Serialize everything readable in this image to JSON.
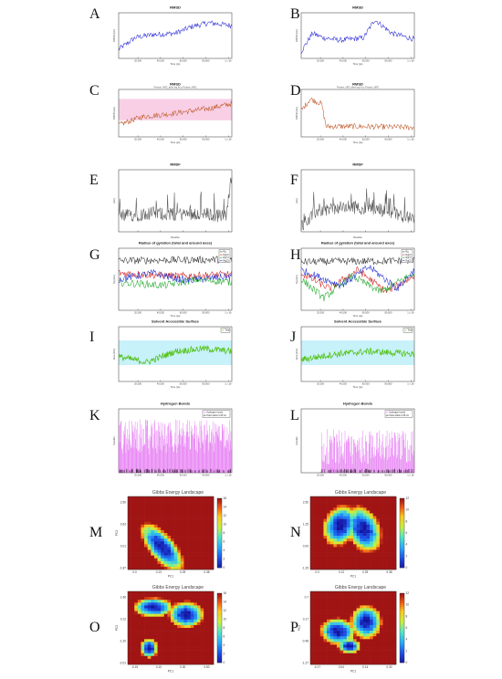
{
  "figure": {
    "panel_letters": [
      "A",
      "B",
      "C",
      "D",
      "E",
      "F",
      "G",
      "H",
      "I",
      "J",
      "K",
      "L",
      "M",
      "N",
      "O",
      "P"
    ]
  },
  "colors": {
    "rmsd_a": "#2b2bd6",
    "rmsd_c": "#c0592a",
    "rmsd_c_band": "#f2a8cf",
    "rmsf": "#555555",
    "sasa": "#55c21b",
    "sasa_band": "#9be7f5",
    "hbond": "#e05cf0",
    "rg_total": "#333333",
    "rg_x": "#d02020",
    "rg_y": "#1fa82a",
    "rg_z": "#2030d0"
  },
  "chart_data": [
    {
      "panel": "A",
      "type": "line",
      "title": "RMSD",
      "subtitle": "",
      "xlabel": "Time (ps)",
      "ylabel": "RMSD (nm)",
      "xticks": [
        "20,000",
        "40,000",
        "60,000",
        "80,000",
        "1 x 10⁵"
      ],
      "series": [
        {
          "color": "#2b2bd6",
          "points": 160,
          "trend": [
            [
              0,
              0.2
            ],
            [
              0.15,
              0.46
            ],
            [
              0.3,
              0.52
            ],
            [
              0.5,
              0.55
            ],
            [
              0.65,
              0.7
            ],
            [
              0.8,
              0.78
            ],
            [
              1,
              0.72
            ]
          ]
        }
      ]
    },
    {
      "panel": "B",
      "type": "line",
      "title": "RMSD",
      "subtitle": "",
      "xlabel": "Time (ps)",
      "ylabel": "RMSD (nm)",
      "xticks": [
        "20,000",
        "40,000",
        "60,000",
        "80,000",
        "1 x 10⁵"
      ],
      "series": [
        {
          "color": "#2b2bd6",
          "points": 160,
          "trend": [
            [
              0,
              0.15
            ],
            [
              0.1,
              0.55
            ],
            [
              0.2,
              0.45
            ],
            [
              0.35,
              0.4
            ],
            [
              0.55,
              0.45
            ],
            [
              0.65,
              0.85
            ],
            [
              0.8,
              0.55
            ],
            [
              1,
              0.42
            ]
          ]
        }
      ]
    },
    {
      "panel": "C",
      "type": "line",
      "title": "RMSD",
      "subtitle": "Protein, NR2_after lsq fit to Protein_NR2",
      "xlabel": "Time (ps)",
      "ylabel": "RMSD (nm)",
      "xticks": [
        "20,000",
        "40,000",
        "60,000",
        "80,000",
        "1 x 10⁵"
      ],
      "series": [
        {
          "color": "#c0592a",
          "points": 160,
          "trend": [
            [
              0,
              0.25
            ],
            [
              0.2,
              0.42
            ],
            [
              0.5,
              0.5
            ],
            [
              0.8,
              0.6
            ],
            [
              1,
              0.7
            ]
          ]
        }
      ]
    },
    {
      "panel": "D",
      "type": "line",
      "title": "RMSD",
      "subtitle": "Protein_NR2 after lsq fit to Protein_NR2",
      "xlabel": "Time (ps)",
      "ylabel": "RMSD (nm)",
      "xticks": [
        "20,000",
        "40,000",
        "60,000",
        "80,000",
        "1 x 10⁵"
      ],
      "series": [
        {
          "color": "#c0592a",
          "points": 160,
          "trend": [
            [
              0,
              0.55
            ],
            [
              0.08,
              0.8
            ],
            [
              0.18,
              0.7
            ],
            [
              0.22,
              0.22
            ],
            [
              0.5,
              0.22
            ],
            [
              1,
              0.2
            ]
          ]
        }
      ]
    },
    {
      "panel": "E",
      "type": "line",
      "title": "RMSF",
      "subtitle": "",
      "xlabel": "Residue",
      "ylabel": "(nm)",
      "xticks": [
        "",
        "",
        "",
        "",
        ""
      ],
      "series": [
        {
          "color": "#555555",
          "points": 200,
          "trend": [
            [
              0,
              0.25
            ],
            [
              0.3,
              0.3
            ],
            [
              0.5,
              0.28
            ],
            [
              0.7,
              0.3
            ],
            [
              0.95,
              0.25
            ],
            [
              1,
              0.95
            ]
          ]
        }
      ]
    },
    {
      "panel": "F",
      "type": "line",
      "title": "RMSF",
      "subtitle": "",
      "xlabel": "Residue",
      "ylabel": "(nm)",
      "xticks": [
        "",
        "",
        "",
        "",
        ""
      ],
      "series": [
        {
          "color": "#555555",
          "points": 200,
          "trend": [
            [
              0,
              0.1
            ],
            [
              0.15,
              0.35
            ],
            [
              0.45,
              0.4
            ],
            [
              0.75,
              0.35
            ],
            [
              1,
              0.2
            ]
          ]
        }
      ]
    },
    {
      "panel": "G",
      "type": "line",
      "title": "Radius of gyration (total and around axes)",
      "subtitle": "",
      "xlabel": "Time (ps)",
      "ylabel": "Rg (nm)",
      "xticks": [
        "20,000",
        "40,000",
        "60,000",
        "80,000",
        "1 x 10⁵"
      ],
      "legend": [
        "Rg",
        "Rg(X)",
        "Rg(Y)",
        "Rg(Z)"
      ],
      "series": [
        {
          "name": "Rg",
          "color": "#333333",
          "points": 140,
          "trend": [
            [
              0,
              0.8
            ],
            [
              1,
              0.82
            ]
          ]
        },
        {
          "name": "Rg(X)",
          "color": "#d02020",
          "points": 140,
          "trend": [
            [
              0,
              0.6
            ],
            [
              0.5,
              0.55
            ],
            [
              1,
              0.58
            ]
          ]
        },
        {
          "name": "Rg(Y)",
          "color": "#1fa82a",
          "points": 140,
          "trend": [
            [
              0,
              0.45
            ],
            [
              0.4,
              0.4
            ],
            [
              0.7,
              0.5
            ],
            [
              1,
              0.45
            ]
          ]
        },
        {
          "name": "Rg(Z)",
          "color": "#2030d0",
          "points": 140,
          "trend": [
            [
              0,
              0.5
            ],
            [
              0.3,
              0.6
            ],
            [
              0.6,
              0.48
            ],
            [
              1,
              0.55
            ]
          ]
        }
      ]
    },
    {
      "panel": "H",
      "type": "line",
      "title": "Radius of gyration (total and around axes)",
      "subtitle": "",
      "xlabel": "Time (ps)",
      "ylabel": "Rg (nm)",
      "xticks": [
        "20,000",
        "40,000",
        "60,000",
        "80,000",
        "1 x 10⁵"
      ],
      "legend": [
        "Rg",
        "Rg(X)",
        "Rg(Y)",
        "Rg(Z)"
      ],
      "series": [
        {
          "name": "Rg",
          "color": "#333333",
          "points": 140,
          "trend": [
            [
              0,
              0.78
            ],
            [
              1,
              0.8
            ]
          ]
        },
        {
          "name": "Rg(X)",
          "color": "#d02020",
          "points": 140,
          "trend": [
            [
              0,
              0.6
            ],
            [
              0.25,
              0.35
            ],
            [
              0.5,
              0.65
            ],
            [
              0.75,
              0.3
            ],
            [
              1,
              0.55
            ]
          ]
        },
        {
          "name": "Rg(Y)",
          "color": "#1fa82a",
          "points": 140,
          "trend": [
            [
              0,
              0.5
            ],
            [
              0.2,
              0.2
            ],
            [
              0.45,
              0.55
            ],
            [
              0.7,
              0.3
            ],
            [
              1,
              0.6
            ]
          ]
        },
        {
          "name": "Rg(Z)",
          "color": "#2030d0",
          "points": 140,
          "trend": [
            [
              0,
              0.65
            ],
            [
              0.35,
              0.4
            ],
            [
              0.6,
              0.7
            ],
            [
              0.85,
              0.35
            ],
            [
              1,
              0.65
            ]
          ]
        }
      ]
    },
    {
      "panel": "I",
      "type": "area",
      "title": "Solvent Accessible Surface",
      "subtitle": "",
      "xlabel": "Time (ps)",
      "ylabel": "Area (nm²)",
      "xticks": [
        "20,000",
        "40,000",
        "60,000",
        "80,000",
        "1 x 10⁵"
      ],
      "legend": [
        "Total"
      ],
      "series": [
        {
          "name": "Total",
          "color": "#55c21b",
          "points": 180,
          "trend": [
            [
              0,
              0.45
            ],
            [
              0.25,
              0.35
            ],
            [
              0.5,
              0.55
            ],
            [
              0.75,
              0.6
            ],
            [
              1,
              0.55
            ]
          ]
        }
      ]
    },
    {
      "panel": "J",
      "type": "area",
      "title": "Solvent Accessible Surface",
      "subtitle": "",
      "xlabel": "Time (ps)",
      "ylabel": "Area (nm²)",
      "xticks": [
        "20,000",
        "40,000",
        "60,000",
        "80,000",
        "1 x 10⁵"
      ],
      "legend": [
        "Total"
      ],
      "series": [
        {
          "name": "Total",
          "color": "#55c21b",
          "points": 180,
          "trend": [
            [
              0,
              0.4
            ],
            [
              0.3,
              0.5
            ],
            [
              0.6,
              0.55
            ],
            [
              1,
              0.5
            ]
          ]
        }
      ]
    },
    {
      "panel": "K",
      "type": "bar",
      "title": "Hydrogen Bonds",
      "subtitle": "",
      "xlabel": "",
      "ylabel": "Number",
      "xticks": [
        "20,000",
        "40,000",
        "60,000",
        "80,000",
        "1 x 10⁵"
      ],
      "legend": [
        "Hydrogen bonds",
        "Pairs within 0.35 nm"
      ],
      "series": [
        {
          "color": "#e05cf0",
          "points": 220,
          "start": 0.0,
          "level": 0.45
        }
      ]
    },
    {
      "panel": "L",
      "type": "bar",
      "title": "Hydrogen Bonds",
      "subtitle": "",
      "xlabel": "",
      "ylabel": "Number",
      "xticks": [
        "20,000",
        "40,000",
        "60,000",
        "80,000",
        "1 x 10⁵"
      ],
      "legend": [
        "Hydrogen bonds",
        "Pairs within 0.35 nm"
      ],
      "series": [
        {
          "color": "#e05cf0",
          "points": 200,
          "start": 0.18,
          "level": 0.3
        }
      ]
    },
    {
      "panel": "M",
      "type": "heatmap",
      "title": "Gibbs Energy Landscape",
      "xlabel": "PC1",
      "ylabel": "PC2",
      "xticks": [
        "0.0",
        "0.13",
        "0.25",
        "0.38"
      ],
      "yticks": [
        "2.50",
        "0.63",
        "0.01",
        "-1.87"
      ],
      "colorbar_ticks": [
        "0",
        "2",
        "4",
        "6",
        "8",
        "10",
        "12",
        "14",
        "16"
      ],
      "blobs": [
        [
          0.4,
          0.7,
          0.12,
          0.3,
          -0.6
        ]
      ]
    },
    {
      "panel": "N",
      "type": "heatmap",
      "title": "Gibbs Energy Landscape",
      "xlabel": "PC1",
      "ylabel": "PC2",
      "xticks": [
        "0.0",
        "0.13",
        "0.25",
        "0.38"
      ],
      "yticks": [
        "2.50",
        "1.25",
        "0.00",
        "-1.25"
      ],
      "colorbar_ticks": [
        "0",
        "2",
        "4",
        "6",
        "8",
        "10",
        "12"
      ],
      "blobs": [
        [
          0.35,
          0.4,
          0.15,
          0.22,
          0.3
        ],
        [
          0.62,
          0.45,
          0.15,
          0.25,
          -0.3
        ]
      ]
    },
    {
      "panel": "O",
      "type": "heatmap",
      "title": "Gibbs Energy Landscape",
      "xlabel": "PC1",
      "ylabel": "PC2",
      "xticks": [
        "-0.15",
        "0.10",
        "0.30",
        "0.50"
      ],
      "yticks": [
        "1.66",
        "0.12",
        "-1.20",
        "-2.01"
      ],
      "colorbar_ticks": [
        "0",
        "2",
        "4",
        "6",
        "8",
        "10",
        "12",
        "14",
        "16"
      ],
      "blobs": [
        [
          0.3,
          0.22,
          0.18,
          0.1,
          0
        ],
        [
          0.68,
          0.32,
          0.16,
          0.14,
          0
        ],
        [
          0.25,
          0.78,
          0.08,
          0.1,
          0
        ]
      ]
    },
    {
      "panel": "P",
      "type": "heatmap",
      "title": "Gibbs Energy Landscape",
      "xlabel": "PC1",
      "ylabel": "PC2",
      "xticks": [
        "-0.17",
        "0.04",
        "0.14",
        "0.30"
      ],
      "yticks": [
        "0.7",
        "0.17",
        "-0.48",
        "-1.27"
      ],
      "colorbar_ticks": [
        "0",
        "2",
        "4",
        "6",
        "8",
        "10",
        "12"
      ],
      "blobs": [
        [
          0.32,
          0.55,
          0.16,
          0.14,
          0.3
        ],
        [
          0.65,
          0.42,
          0.14,
          0.18,
          0
        ],
        [
          0.45,
          0.75,
          0.1,
          0.08,
          0
        ]
      ]
    }
  ]
}
